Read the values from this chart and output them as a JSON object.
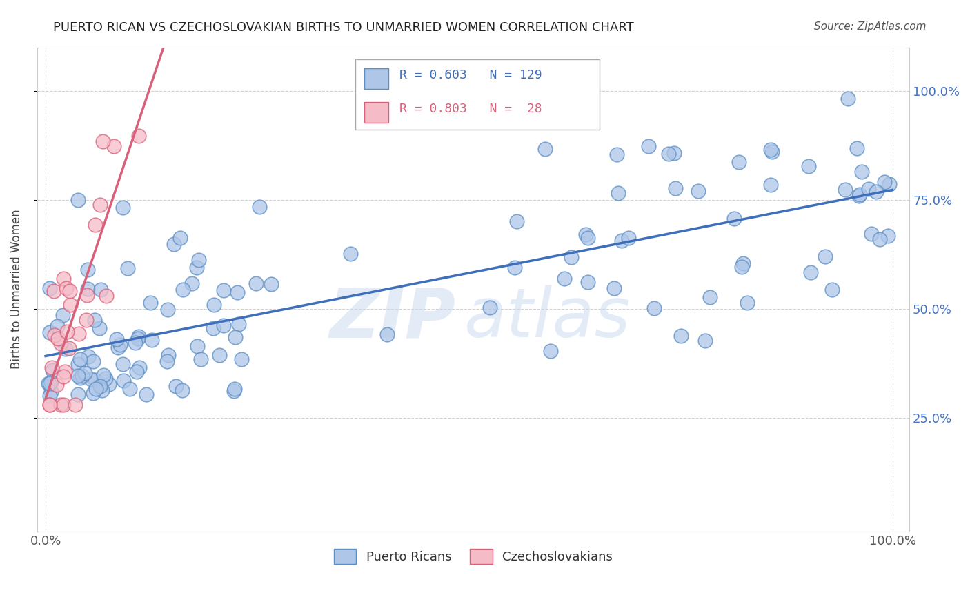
{
  "title": "PUERTO RICAN VS CZECHOSLOVAKIAN BIRTHS TO UNMARRIED WOMEN CORRELATION CHART",
  "source": "Source: ZipAtlas.com",
  "ylabel": "Births to Unmarried Women",
  "blue_R": 0.603,
  "blue_N": 129,
  "pink_R": 0.803,
  "pink_N": 28,
  "blue_color": "#aec6e8",
  "blue_edge_color": "#5b8ec4",
  "blue_line_color": "#3f6fba",
  "pink_color": "#f5bcc8",
  "pink_edge_color": "#d9607a",
  "pink_line_color": "#d9607a",
  "legend_label_blue": "Puerto Ricans",
  "legend_label_pink": "Czechoslovakians",
  "watermark_zip": "ZIP",
  "watermark_atlas": "atlas",
  "right_tick_color": "#4472c4",
  "title_fontsize": 13,
  "source_fontsize": 11,
  "tick_fontsize": 13
}
